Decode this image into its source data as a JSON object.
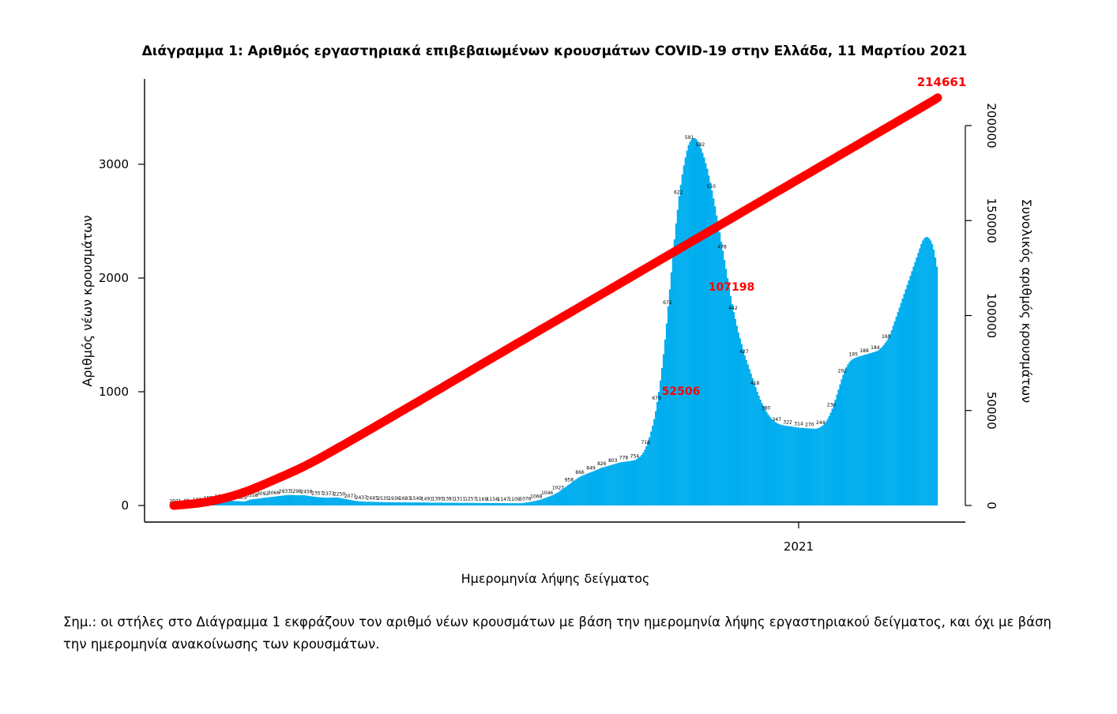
{
  "chart_data": {
    "type": "bar",
    "title": "Διάγραμμα 1: Αριθμός εργαστηριακά επιβεβαιωμένων κρουσμάτων COVID-19 στην Ελλάδα, 11 Μαρτίου 2021",
    "xlabel": "Ημερομηνία λήψης δείγματος",
    "ylabel": "Αριθμός νέων κρουσμάτων",
    "y2label": "Συνολικός αριθμός κρουσμάτων",
    "x_tick_labels": [
      "2021"
    ],
    "ylim": [
      0,
      3700
    ],
    "yticks": [
      0,
      1000,
      2000,
      3000
    ],
    "y2lim": [
      0,
      230000
    ],
    "y2ticks": [
      0,
      50000,
      100000,
      150000,
      200000
    ],
    "bar_color": "#00aeef",
    "line_color": "#ff0000",
    "grid": false,
    "series": [
      {
        "type": "bar",
        "values": [
          2,
          2,
          2,
          2,
          3,
          4,
          6,
          7,
          8,
          9,
          10,
          11,
          12,
          14,
          15,
          17,
          18,
          20,
          22,
          24,
          26,
          28,
          30,
          32,
          35,
          38,
          40,
          42,
          44,
          45,
          47,
          49,
          48,
          46,
          45,
          44,
          44,
          42,
          40,
          38,
          39,
          38,
          37,
          36,
          35,
          36,
          40,
          45,
          50,
          52,
          55,
          57,
          58,
          59,
          60,
          62,
          65,
          68,
          70,
          70,
          72,
          74,
          75,
          77,
          78,
          80,
          82,
          84,
          85,
          86,
          88,
          90,
          92,
          92,
          92,
          92,
          92,
          91,
          90,
          90,
          90,
          91,
          92,
          90,
          88,
          86,
          84,
          82,
          80,
          78,
          76,
          74,
          73,
          72,
          71,
          70,
          70,
          69,
          68,
          68,
          68,
          70,
          70,
          70,
          70,
          68,
          66,
          63,
          60,
          58,
          55,
          52,
          50,
          47,
          45,
          42,
          40,
          38,
          37,
          36,
          35,
          34,
          34,
          33,
          33,
          33,
          32,
          32,
          32,
          31,
          31,
          30,
          30,
          30,
          29,
          29,
          29,
          29,
          28,
          28,
          28,
          28,
          28,
          28,
          28,
          28,
          28,
          28,
          28,
          28,
          28,
          27,
          27,
          27,
          27,
          27,
          27,
          26,
          26,
          26,
          26,
          26,
          26,
          25,
          25,
          25,
          25,
          25,
          25,
          25,
          25,
          25,
          24,
          24,
          24,
          24,
          24,
          24,
          24,
          24,
          24,
          24,
          23,
          23,
          23,
          23,
          23,
          23,
          23,
          23,
          23,
          23,
          22,
          22,
          22,
          22,
          22,
          22,
          22,
          22,
          22,
          22,
          21,
          21,
          21,
          21,
          21,
          21,
          21,
          21,
          21,
          21,
          20,
          20,
          20,
          20,
          20,
          20,
          20,
          20,
          20,
          20,
          20,
          22,
          24,
          26,
          28,
          30,
          32,
          35,
          38,
          40,
          44,
          47,
          50,
          55,
          60,
          65,
          70,
          75,
          80,
          85,
          90,
          97,
          105,
          112,
          120,
          130,
          140,
          150,
          160,
          170,
          180,
          190,
          200,
          210,
          220,
          230,
          240,
          248,
          256,
          262,
          268,
          274,
          280,
          285,
          290,
          295,
          300,
          306,
          312,
          318,
          324,
          330,
          334,
          338,
          342,
          346,
          350,
          354,
          358,
          362,
          366,
          370,
          374,
          378,
          380,
          382,
          384,
          386,
          388,
          390,
          392,
          395,
          398,
          400,
          410,
          420,
          430,
          445,
          465,
          490,
          520,
          560,
          600,
          650,
          700,
          760,
          830,
          910,
          1000,
          1100,
          1210,
          1330,
          1460,
          1600,
          1750,
          1900,
          2050,
          2200,
          2340,
          2480,
          2600,
          2720,
          2820,
          2910,
          2990,
          3060,
          3120,
          3170,
          3200,
          3220,
          3230,
          3230,
          3220,
          3200,
          3170,
          3140,
          3100,
          3060,
          3010,
          2960,
          2900,
          2840,
          2770,
          2700,
          2630,
          2550,
          2480,
          2400,
          2320,
          2240,
          2160,
          2080,
          2000,
          1920,
          1840,
          1770,
          1700,
          1640,
          1580,
          1520,
          1470,
          1420,
          1370,
          1320,
          1280,
          1240,
          1200,
          1160,
          1120,
          1080,
          1040,
          1000,
          965,
          930,
          900,
          872,
          846,
          822,
          800,
          782,
          766,
          752,
          740,
          730,
          722,
          716,
          711,
          707,
          704,
          702,
          700,
          698,
          696,
          694,
          692,
          690,
          688,
          686,
          684,
          683,
          682,
          681,
          680,
          679,
          678,
          677,
          676,
          676,
          675,
          676,
          680,
          686,
          694,
          705,
          720,
          738,
          760,
          786,
          816,
          850,
          888,
          930,
          975,
          1020,
          1065,
          1110,
          1150,
          1185,
          1215,
          1240,
          1260,
          1275,
          1286,
          1294,
          1300,
          1305,
          1310,
          1314,
          1318,
          1322,
          1326,
          1330,
          1334,
          1338,
          1342,
          1346,
          1350,
          1355,
          1360,
          1370,
          1382,
          1396,
          1412,
          1430,
          1450,
          1475,
          1505,
          1540,
          1580,
          1620,
          1660,
          1700,
          1740,
          1780,
          1820,
          1860,
          1900,
          1940,
          1980,
          2020,
          2060,
          2100,
          2140,
          2180,
          2220,
          2260,
          2300,
          2330,
          2350,
          2360,
          2360,
          2350,
          2330,
          2300,
          2250,
          2180,
          2100
        ]
      },
      {
        "type": "line",
        "values": [
          0,
          200,
          420,
          660,
          920,
          1220,
          1580,
          2010,
          2490,
          3030,
          3630,
          4290,
          5010,
          5790,
          6630,
          7530,
          8490,
          9510,
          10560,
          11640,
          12750,
          13870,
          14990,
          16110,
          17250,
          18420,
          19630,
          20890,
          22190,
          23530,
          24910,
          26330,
          27770,
          29220,
          30670,
          32120,
          33580,
          35050,
          36530,
          38000,
          39490,
          40970,
          42460,
          43940,
          45430,
          46920,
          48420,
          49910,
          51410,
          52890,
          54380,
          55870,
          57370,
          58870,
          60370,
          61890,
          63400,
          64910,
          66420,
          67930,
          69440,
          70950,
          72460,
          73970,
          75470,
          76970,
          78460,
          79950,
          81450,
          82940,
          84440,
          85930,
          87430,
          88930,
          90420,
          91920,
          93410,
          94910,
          96410,
          97900,
          99400,
          100890,
          102390,
          103880,
          105380,
          106870,
          108370,
          109860,
          111360,
          112850,
          114350,
          115840,
          117340,
          118840,
          120330,
          121830,
          123320,
          124820,
          126310,
          127810,
          129300,
          130800,
          132290,
          133790,
          135280,
          136780,
          138270,
          139770,
          141260,
          142750,
          144250,
          145740,
          147240,
          148730,
          150230,
          151720,
          153220,
          154710,
          156210,
          157700,
          159200,
          160690,
          162190,
          163680,
          165180,
          166670,
          168170,
          169660,
          171160,
          172650,
          174150,
          175640,
          177140,
          178630,
          180130,
          181620,
          183120,
          184610,
          186110,
          187600,
          189100,
          190590,
          192090,
          193580,
          195080,
          196570,
          198070,
          199560,
          201060,
          202550,
          204050,
          205540,
          207040,
          208530,
          210030,
          211520,
          213020,
          214661
        ]
      }
    ],
    "data_labels": [
      "2021",
      "49",
      "112",
      "159",
      "161",
      "422",
      "3605",
      "3558",
      "3092",
      "3066",
      "2937",
      "3298",
      "2458",
      "2357",
      "2373",
      "2250",
      "2071",
      "2437",
      "2445",
      "2535",
      "1936",
      "1683",
      "1549",
      "1491",
      "1395",
      "1381",
      "1311",
      "1257",
      "1169",
      "1156",
      "1147",
      "1109",
      "1076",
      "1068",
      "1046",
      "1027",
      "958",
      "866",
      "849",
      "826",
      "803",
      "778",
      "754",
      "718",
      "679",
      "672",
      "622",
      "591",
      "582",
      "510",
      "478",
      "442",
      "427",
      "418",
      "380",
      "347",
      "322",
      "314",
      "270",
      "244",
      "230",
      "202",
      "195",
      "188",
      "184",
      "169"
    ],
    "annotations": [
      "214661",
      "107198",
      "52506"
    ]
  },
  "note": "Σημ.: οι στήλες στο Διάγραμμα 1 εκφράζουν τον αριθμό νέων κρουσμάτων με βάση την ημερομηνία λήψης εργαστηριακού δείγματος, και όχι με βάση την ημερομηνία ανακοίνωσης των κρουσμάτων."
}
